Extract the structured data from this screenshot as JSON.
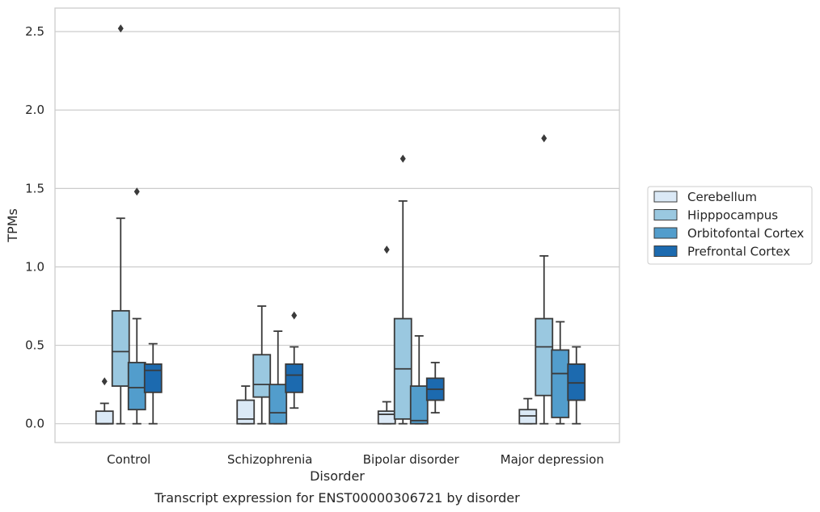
{
  "chart_data": {
    "type": "boxplot",
    "caption": "Transcript expression for ENST00000306721 by disorder",
    "xlabel": "Disorder",
    "ylabel": "TPMs",
    "ylim": [
      -0.12,
      2.65
    ],
    "yticks": [
      "0.0",
      "0.5",
      "1.0",
      "1.5",
      "2.0",
      "2.5"
    ],
    "grid": true,
    "legend_position": "right",
    "categories": [
      "Control",
      "Schizophrenia",
      "Bipolar disorder",
      "Major depression"
    ],
    "series": [
      {
        "name": "Cerebellum",
        "color": "#dbe9f6",
        "boxes": [
          {
            "whislo": 0.0,
            "q1": 0.0,
            "med": 0.0,
            "q3": 0.08,
            "whishi": 0.13,
            "fliers": [
              0.27
            ]
          },
          {
            "whislo": 0.0,
            "q1": 0.0,
            "med": 0.03,
            "q3": 0.15,
            "whishi": 0.24,
            "fliers": []
          },
          {
            "whislo": 0.0,
            "q1": 0.0,
            "med": 0.06,
            "q3": 0.08,
            "whishi": 0.14,
            "fliers": [
              1.11
            ]
          },
          {
            "whislo": 0.0,
            "q1": 0.0,
            "med": 0.05,
            "q3": 0.09,
            "whishi": 0.16,
            "fliers": []
          }
        ]
      },
      {
        "name": "Hipppocampus",
        "color": "#9ac8e0",
        "boxes": [
          {
            "whislo": 0.0,
            "q1": 0.24,
            "med": 0.46,
            "q3": 0.72,
            "whishi": 1.31,
            "fliers": [
              2.52
            ]
          },
          {
            "whislo": 0.0,
            "q1": 0.17,
            "med": 0.25,
            "q3": 0.44,
            "whishi": 0.75,
            "fliers": []
          },
          {
            "whislo": 0.0,
            "q1": 0.03,
            "med": 0.35,
            "q3": 0.67,
            "whishi": 1.42,
            "fliers": [
              1.69
            ]
          },
          {
            "whislo": 0.0,
            "q1": 0.18,
            "med": 0.49,
            "q3": 0.67,
            "whishi": 1.07,
            "fliers": [
              1.82
            ]
          }
        ]
      },
      {
        "name": "Orbitofontal Cortex",
        "color": "#529dcc",
        "boxes": [
          {
            "whislo": 0.0,
            "q1": 0.09,
            "med": 0.23,
            "q3": 0.39,
            "whishi": 0.67,
            "fliers": [
              1.48
            ]
          },
          {
            "whislo": 0.0,
            "q1": 0.0,
            "med": 0.07,
            "q3": 0.25,
            "whishi": 0.59,
            "fliers": []
          },
          {
            "whislo": 0.0,
            "q1": 0.0,
            "med": 0.02,
            "q3": 0.24,
            "whishi": 0.56,
            "fliers": []
          },
          {
            "whislo": 0.0,
            "q1": 0.04,
            "med": 0.32,
            "q3": 0.47,
            "whishi": 0.65,
            "fliers": []
          }
        ]
      },
      {
        "name": "Prefrontal Cortex",
        "color": "#1c6aaf",
        "boxes": [
          {
            "whislo": 0.0,
            "q1": 0.2,
            "med": 0.34,
            "q3": 0.38,
            "whishi": 0.51,
            "fliers": []
          },
          {
            "whislo": 0.1,
            "q1": 0.2,
            "med": 0.31,
            "q3": 0.38,
            "whishi": 0.49,
            "fliers": [
              0.69
            ]
          },
          {
            "whislo": 0.07,
            "q1": 0.15,
            "med": 0.22,
            "q3": 0.29,
            "whishi": 0.39,
            "fliers": []
          },
          {
            "whislo": 0.0,
            "q1": 0.15,
            "med": 0.26,
            "q3": 0.38,
            "whishi": 0.49,
            "fliers": []
          }
        ]
      }
    ]
  }
}
